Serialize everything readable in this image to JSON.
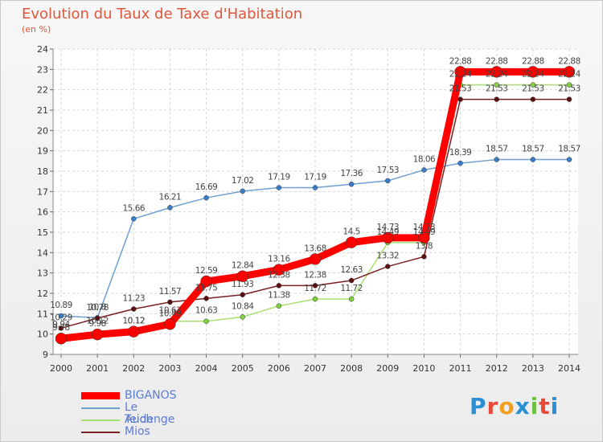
{
  "title": "Evolution du Taux de Taxe d'Habitation",
  "subtitle": "(en %)",
  "logo": "Proxiti",
  "chart_data": {
    "type": "line",
    "x": [
      "2000",
      "2001",
      "2002",
      "2003",
      "2004",
      "2005",
      "2006",
      "2007",
      "2008",
      "2009",
      "2010",
      "2011",
      "2012",
      "2013",
      "2014"
    ],
    "ylim": [
      9,
      24
    ],
    "grid": true,
    "legend_position": "bottom-left",
    "series": [
      {
        "name": "BIGANOS",
        "color": "#ff0000",
        "values": [
          9.78,
          9.98,
          10.12,
          10.49,
          12.59,
          12.84,
          13.16,
          13.68,
          14.5,
          14.73,
          14.73,
          22.88,
          22.88,
          22.88,
          22.88
        ]
      },
      {
        "name": "Le Teich",
        "color": "#6ea0d0",
        "values": [
          10.89,
          10.8,
          15.66,
          16.21,
          16.69,
          17.02,
          17.19,
          17.19,
          17.36,
          17.53,
          18.06,
          18.39,
          18.57,
          18.57,
          18.57
        ]
      },
      {
        "name": "Audenge",
        "color": "#a8e070",
        "values": [
          9.94,
          10.12,
          10.12,
          10.63,
          10.63,
          10.84,
          11.38,
          11.72,
          11.72,
          14.49,
          14.49,
          22.24,
          22.24,
          22.24,
          22.24
        ]
      },
      {
        "name": "Mios",
        "color": "#7a2020",
        "values": [
          10.29,
          10.78,
          11.23,
          11.57,
          11.75,
          11.93,
          12.38,
          12.38,
          12.63,
          13.32,
          13.8,
          21.53,
          21.53,
          21.53,
          21.53
        ]
      }
    ]
  }
}
